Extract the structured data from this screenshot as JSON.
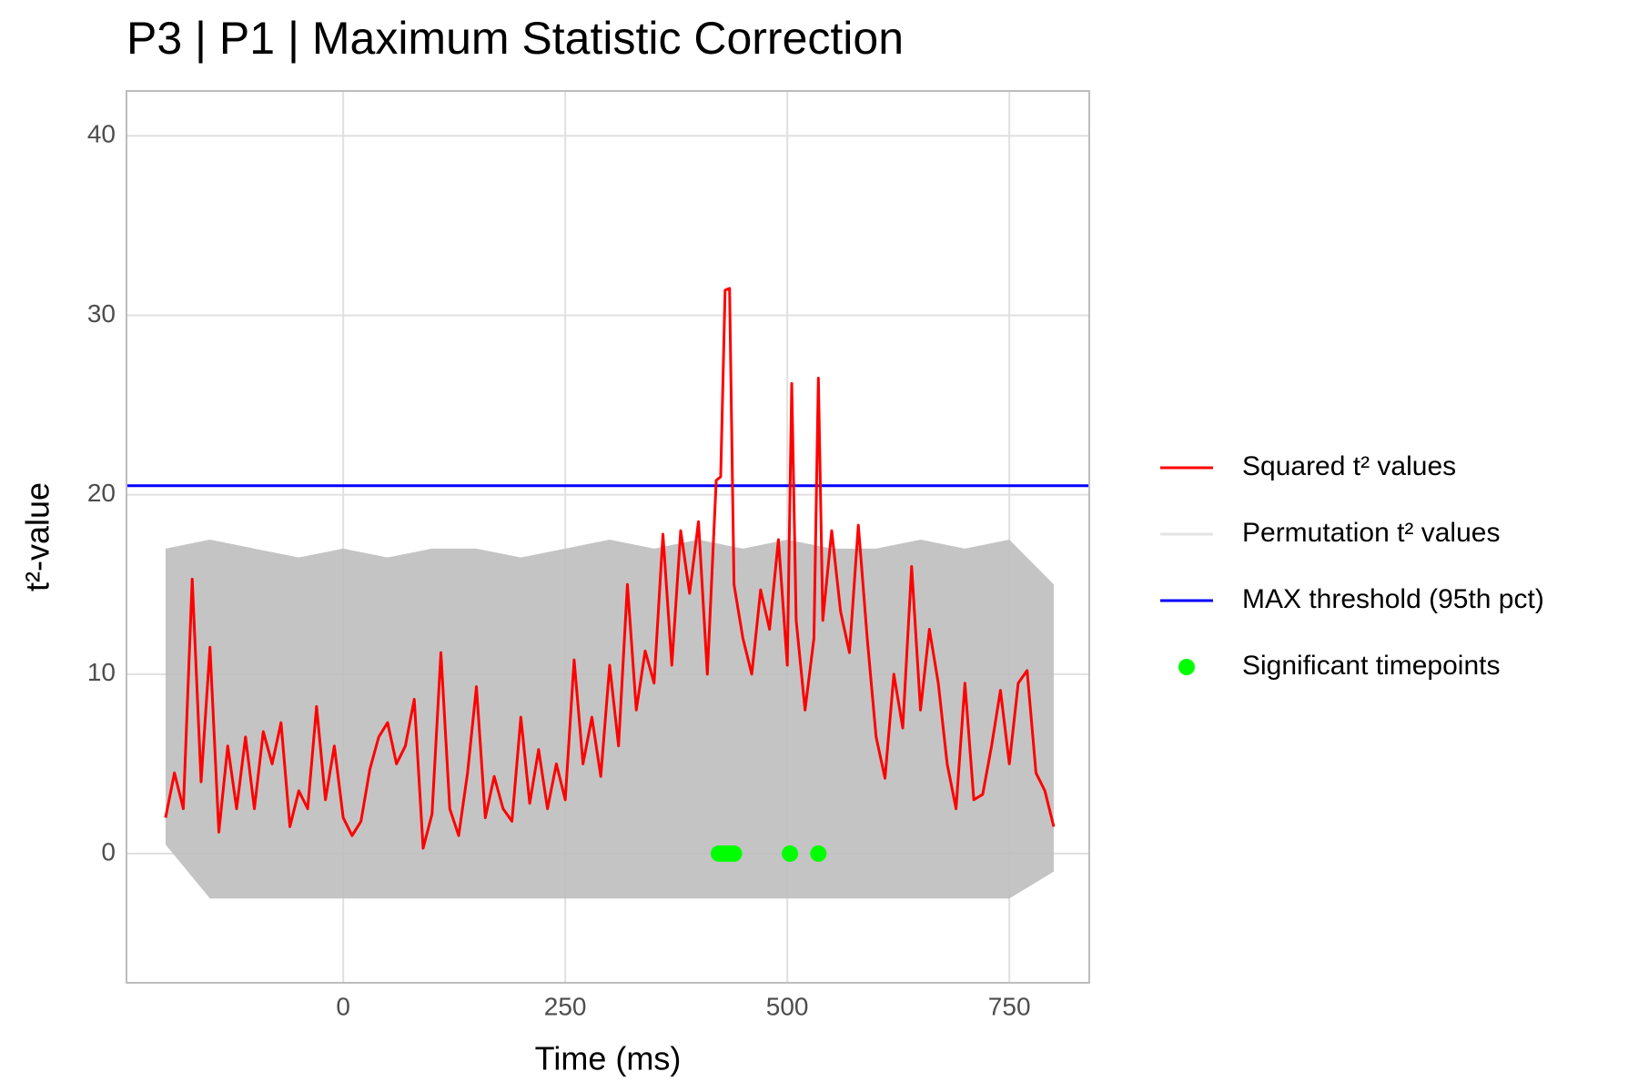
{
  "chart_data": {
    "type": "line",
    "title": "P3 | P1 | Maximum Statistic Correction",
    "x_label": "Time (ms)",
    "y_label": "t²-value",
    "xlim": [
      -244,
      840
    ],
    "ylim": [
      -7.2,
      42.5
    ],
    "xticks": [
      0,
      250,
      500,
      750
    ],
    "yticks": [
      0,
      10,
      20,
      30,
      40
    ],
    "grid": true,
    "legend": "right",
    "series": [
      {
        "name": "Squared t² values",
        "color": "#ff0000",
        "x": [
          -200,
          -190,
          -180,
          -170,
          -160,
          -150,
          -140,
          -130,
          -120,
          -110,
          -100,
          -90,
          -80,
          -70,
          -60,
          -50,
          -40,
          -30,
          -20,
          -10,
          0,
          10,
          20,
          30,
          40,
          50,
          60,
          70,
          80,
          90,
          100,
          110,
          120,
          130,
          140,
          150,
          160,
          170,
          180,
          190,
          200,
          210,
          220,
          230,
          240,
          250,
          260,
          270,
          280,
          290,
          300,
          310,
          320,
          330,
          340,
          350,
          360,
          370,
          380,
          390,
          400,
          410,
          420,
          425,
          430,
          435,
          440,
          450,
          460,
          470,
          480,
          490,
          500,
          505,
          510,
          520,
          530,
          535,
          540,
          550,
          560,
          570,
          580,
          590,
          600,
          610,
          620,
          630,
          640,
          650,
          660,
          670,
          680,
          690,
          700,
          710,
          720,
          730,
          740,
          750,
          760,
          770,
          780,
          790,
          800
        ],
        "values": [
          2,
          4.5,
          2.5,
          15.3,
          4,
          11.5,
          1.2,
          6,
          2.5,
          6.5,
          2.5,
          6.8,
          5,
          7.3,
          1.5,
          3.5,
          2.5,
          8.2,
          3,
          6,
          2,
          1,
          1.8,
          4.7,
          6.5,
          7.3,
          5,
          6,
          8.6,
          0.3,
          2.2,
          11.2,
          2.5,
          1,
          4.5,
          9.3,
          2,
          4.3,
          2.5,
          1.8,
          7.6,
          2.8,
          5.8,
          2.5,
          5,
          3,
          10.8,
          5,
          7.6,
          4.3,
          10.5,
          6,
          15,
          8,
          11.3,
          9.5,
          17.8,
          10.5,
          18,
          14.5,
          18.5,
          10,
          20.8,
          21,
          31.4,
          31.5,
          15,
          12,
          10,
          14.7,
          12.5,
          17.5,
          10.5,
          26.2,
          13,
          8,
          12,
          26.5,
          13,
          18,
          13.5,
          11.2,
          18.3,
          12,
          6.5,
          4.2,
          10,
          7,
          16,
          8,
          12.5,
          9.5,
          5,
          2.5,
          9.5,
          3,
          3.3,
          6,
          9.1,
          5,
          9.5,
          10.2,
          4.5,
          3.5,
          1.5
        ]
      }
    ],
    "permutations": {
      "name": "Permutation t² values",
      "color": "#bebebe",
      "x": [
        -200,
        -150,
        -100,
        -50,
        0,
        50,
        100,
        150,
        200,
        250,
        300,
        350,
        400,
        450,
        500,
        550,
        600,
        650,
        700,
        750,
        800
      ],
      "upper": [
        17,
        17.5,
        17,
        16.5,
        17,
        16.5,
        17,
        17,
        16.5,
        17,
        17.5,
        17,
        17.5,
        17,
        17.5,
        17,
        17,
        17.5,
        17,
        17.5,
        15
      ],
      "lower": [
        0.5,
        -2.5,
        -2.5,
        -2.5,
        -2.5,
        -2.5,
        -2.5,
        -2.5,
        -2.5,
        -2.5,
        -2.5,
        -2.5,
        -2.5,
        -2.5,
        -2.5,
        -2.5,
        -2.5,
        -2.5,
        -2.5,
        -2.5,
        -1
      ]
    },
    "threshold": {
      "name": "MAX threshold (95th pct)",
      "color": "#0000ff",
      "value": 20.5
    },
    "significant": {
      "name": "Significant timepoints",
      "color": "#00ff00",
      "x": [
        423,
        428,
        432,
        436,
        440,
        503,
        535
      ],
      "values": [
        0,
        0,
        0,
        0,
        0,
        0,
        0
      ]
    }
  }
}
